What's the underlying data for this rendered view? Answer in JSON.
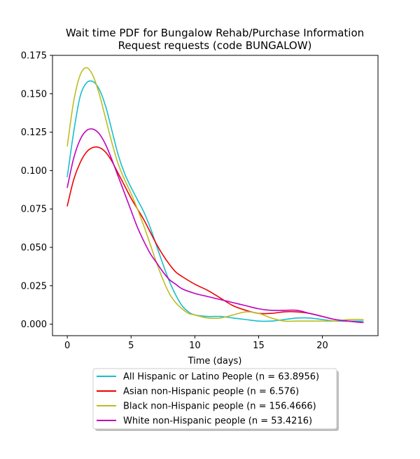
{
  "chart_data": {
    "type": "line",
    "title_lines": [
      "Wait time PDF for Bungalow Rehab/Purchase Information",
      "Request  requests (code BUNGALOW)"
    ],
    "xlabel": "Time (days)",
    "ylabel": "",
    "xlim": [
      -1.16,
      24.36
    ],
    "ylim": [
      -0.0075,
      0.175
    ],
    "xticks": [
      0,
      5,
      10,
      15,
      20
    ],
    "xtick_labels": [
      "0",
      "5",
      "10",
      "15",
      "20"
    ],
    "yticks": [
      0.0,
      0.025,
      0.05,
      0.075,
      0.1,
      0.125,
      0.15,
      0.175
    ],
    "ytick_labels": [
      "0.000",
      "0.025",
      "0.050",
      "0.075",
      "0.100",
      "0.125",
      "0.150",
      "0.175"
    ],
    "grid": false,
    "legend_position": "below plot, centered",
    "series": [
      {
        "name": "All Hispanic or Latino People (n = 63.8956)",
        "color": "#17becf",
        "points": [
          [
            0,
            0.096
          ],
          [
            0.5,
            0.125
          ],
          [
            1,
            0.148
          ],
          [
            1.5,
            0.157
          ],
          [
            2,
            0.158
          ],
          [
            2.5,
            0.153
          ],
          [
            3,
            0.142
          ],
          [
            3.5,
            0.126
          ],
          [
            4,
            0.11
          ],
          [
            4.5,
            0.098
          ],
          [
            5,
            0.089
          ],
          [
            5.5,
            0.081
          ],
          [
            6,
            0.073
          ],
          [
            6.5,
            0.063
          ],
          [
            7,
            0.051
          ],
          [
            7.5,
            0.039
          ],
          [
            8,
            0.028
          ],
          [
            8.5,
            0.019
          ],
          [
            9,
            0.012
          ],
          [
            9.5,
            0.008
          ],
          [
            10,
            0.006
          ],
          [
            11,
            0.005
          ],
          [
            12,
            0.005
          ],
          [
            13,
            0.004
          ],
          [
            14,
            0.003
          ],
          [
            15,
            0.002
          ],
          [
            16,
            0.002
          ],
          [
            17,
            0.003
          ],
          [
            18,
            0.004
          ],
          [
            19,
            0.004
          ],
          [
            20,
            0.003
          ],
          [
            21,
            0.002
          ],
          [
            22,
            0.002
          ],
          [
            23.2,
            0.002
          ]
        ]
      },
      {
        "name": "Asian non-Hispanic people (n = 6.576)",
        "color": "#ee0000",
        "points": [
          [
            0,
            0.077
          ],
          [
            0.5,
            0.094
          ],
          [
            1,
            0.105
          ],
          [
            1.5,
            0.112
          ],
          [
            2,
            0.115
          ],
          [
            2.5,
            0.115
          ],
          [
            3,
            0.112
          ],
          [
            3.5,
            0.106
          ],
          [
            4,
            0.098
          ],
          [
            4.5,
            0.09
          ],
          [
            5,
            0.082
          ],
          [
            5.5,
            0.075
          ],
          [
            6,
            0.068
          ],
          [
            6.5,
            0.06
          ],
          [
            7,
            0.052
          ],
          [
            7.5,
            0.045
          ],
          [
            8,
            0.039
          ],
          [
            8.5,
            0.034
          ],
          [
            9,
            0.031
          ],
          [
            10,
            0.026
          ],
          [
            11,
            0.022
          ],
          [
            12,
            0.017
          ],
          [
            13,
            0.012
          ],
          [
            14,
            0.009
          ],
          [
            15,
            0.007
          ],
          [
            16,
            0.007
          ],
          [
            17,
            0.008
          ],
          [
            18,
            0.008
          ],
          [
            19,
            0.007
          ],
          [
            20,
            0.005
          ],
          [
            21,
            0.003
          ],
          [
            22,
            0.002
          ],
          [
            23.2,
            0.001
          ]
        ]
      },
      {
        "name": "Black non-Hispanic people (n = 156.4666)",
        "color": "#bcbd22",
        "points": [
          [
            0,
            0.116
          ],
          [
            0.5,
            0.145
          ],
          [
            1,
            0.162
          ],
          [
            1.5,
            0.167
          ],
          [
            2,
            0.162
          ],
          [
            2.5,
            0.15
          ],
          [
            3,
            0.134
          ],
          [
            3.5,
            0.118
          ],
          [
            4,
            0.104
          ],
          [
            4.5,
            0.094
          ],
          [
            5,
            0.085
          ],
          [
            5.5,
            0.075
          ],
          [
            6,
            0.064
          ],
          [
            6.5,
            0.052
          ],
          [
            7,
            0.04
          ],
          [
            7.5,
            0.029
          ],
          [
            8,
            0.02
          ],
          [
            8.5,
            0.014
          ],
          [
            9,
            0.01
          ],
          [
            9.5,
            0.007
          ],
          [
            10,
            0.006
          ],
          [
            11,
            0.004
          ],
          [
            12,
            0.004
          ],
          [
            13,
            0.006
          ],
          [
            14,
            0.008
          ],
          [
            15,
            0.007
          ],
          [
            16,
            0.004
          ],
          [
            17,
            0.002
          ],
          [
            18,
            0.002
          ],
          [
            19,
            0.002
          ],
          [
            20,
            0.002
          ],
          [
            21,
            0.002
          ],
          [
            22,
            0.003
          ],
          [
            23.2,
            0.003
          ]
        ]
      },
      {
        "name": "White non-Hispanic people (n = 53.4216)",
        "color": "#bf00bf",
        "points": [
          [
            0,
            0.089
          ],
          [
            0.5,
            0.108
          ],
          [
            1,
            0.12
          ],
          [
            1.5,
            0.126
          ],
          [
            2,
            0.127
          ],
          [
            2.5,
            0.124
          ],
          [
            3,
            0.117
          ],
          [
            3.5,
            0.107
          ],
          [
            4,
            0.096
          ],
          [
            4.5,
            0.085
          ],
          [
            5,
            0.074
          ],
          [
            5.5,
            0.063
          ],
          [
            6,
            0.054
          ],
          [
            6.5,
            0.046
          ],
          [
            7,
            0.04
          ],
          [
            7.5,
            0.034
          ],
          [
            8,
            0.029
          ],
          [
            8.5,
            0.026
          ],
          [
            9,
            0.023
          ],
          [
            10,
            0.02
          ],
          [
            11,
            0.018
          ],
          [
            12,
            0.016
          ],
          [
            13,
            0.014
          ],
          [
            14,
            0.012
          ],
          [
            15,
            0.01
          ],
          [
            16,
            0.009
          ],
          [
            17,
            0.009
          ],
          [
            18,
            0.009
          ],
          [
            19,
            0.007
          ],
          [
            20,
            0.005
          ],
          [
            21,
            0.003
          ],
          [
            22,
            0.002
          ],
          [
            23.2,
            0.001
          ]
        ]
      }
    ]
  }
}
